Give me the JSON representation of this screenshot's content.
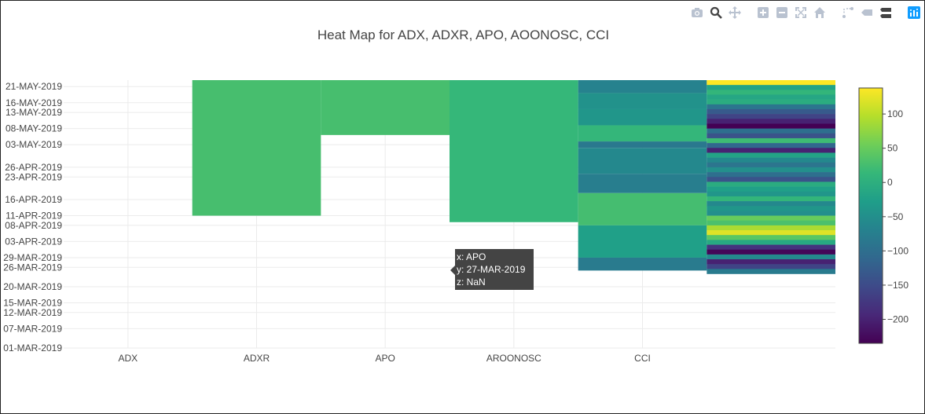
{
  "modebar": {
    "buttons": [
      {
        "name": "camera-icon"
      },
      {
        "name": "zoom-icon",
        "active": true
      },
      {
        "name": "pan-icon"
      },
      {
        "name": "zoom-in-icon"
      },
      {
        "name": "zoom-out-icon"
      },
      {
        "name": "autoscale-icon"
      },
      {
        "name": "home-icon"
      },
      {
        "name": "spike-lines-icon"
      },
      {
        "name": "hover-closest-icon"
      },
      {
        "name": "hover-compare-icon"
      },
      {
        "name": "plotly-logo-icon"
      }
    ],
    "active_color": "#444444",
    "inactive_color": "#b9c2d0",
    "logo_color": "#119dff"
  },
  "tooltip": {
    "x_line": "x: APO",
    "y_line": "y: 27-MAR-2019",
    "z_line": "z: NaN"
  },
  "chart_data": {
    "type": "heatmap",
    "title": "Heat Map for ADX, ADXR, APO, AOONOSC, CCI",
    "colorscale": "viridis",
    "zlim": [
      -235,
      138
    ],
    "colorbar_ticks": [
      100,
      50,
      0,
      -50,
      -100,
      -150,
      -200
    ],
    "x_categories": [
      "ADX",
      "ADXR",
      "APO",
      "AROONOSC",
      "CCI"
    ],
    "y_ticks": [
      "01-MAR-2019",
      "07-MAR-2019",
      "12-MAR-2019",
      "15-MAR-2019",
      "20-MAR-2019",
      "26-MAR-2019",
      "29-MAR-2019",
      "03-APR-2019",
      "08-APR-2019",
      "11-APR-2019",
      "16-APR-2019",
      "23-APR-2019",
      "26-APR-2019",
      "03-MAY-2019",
      "08-MAY-2019",
      "13-MAY-2019",
      "16-MAY-2019",
      "21-MAY-2019"
    ],
    "grid": true,
    "legend": "none",
    "blocks": [
      {
        "y_from": "11-APR-2019",
        "y_to": "23-MAY-2019",
        "x_from": 0.5,
        "x_to": 1.5,
        "z": 27
      },
      {
        "y_from": "06-MAY-2019",
        "y_to": "23-MAY-2019",
        "x_from": 1.5,
        "x_to": 2.5,
        "z": 27
      },
      {
        "y_from": "09-APR-2019",
        "y_to": "23-MAY-2019",
        "x_from": 2.5,
        "x_to": 3.5,
        "z": 14
      },
      {
        "y_from": "19-MAY-2019",
        "y_to": "23-MAY-2019",
        "x_from": 3.5,
        "x_to": 4.5,
        "z": -70
      },
      {
        "y_from": "14-MAY-2019",
        "y_to": "19-MAY-2019",
        "x_from": 3.5,
        "x_to": 4.5,
        "z": -45
      },
      {
        "y_from": "09-MAY-2019",
        "y_to": "14-MAY-2019",
        "x_from": 3.5,
        "x_to": 4.5,
        "z": -40
      },
      {
        "y_from": "04-MAY-2019",
        "y_to": "09-MAY-2019",
        "x_from": 3.5,
        "x_to": 4.5,
        "z": 12
      },
      {
        "y_from": "02-MAY-2019",
        "y_to": "04-MAY-2019",
        "x_from": 3.5,
        "x_to": 4.5,
        "z": -85
      },
      {
        "y_from": "24-APR-2019",
        "y_to": "02-MAY-2019",
        "x_from": 3.5,
        "x_to": 4.5,
        "z": -60
      },
      {
        "y_from": "18-APR-2019",
        "y_to": "24-APR-2019",
        "x_from": 3.5,
        "x_to": 4.5,
        "z": -75
      },
      {
        "y_from": "08-APR-2019",
        "y_to": "18-APR-2019",
        "x_from": 3.5,
        "x_to": 4.5,
        "z": 25
      },
      {
        "y_from": "29-MAR-2019",
        "y_to": "08-APR-2019",
        "x_from": 3.5,
        "x_to": 4.5,
        "z": -25
      },
      {
        "y_from": "25-MAR-2019",
        "y_to": "29-MAR-2019",
        "x_from": 3.5,
        "x_to": 4.5,
        "z": -80
      }
    ],
    "stripes": {
      "x_from": 4.5,
      "x_to": 5.5,
      "y_from": "23-MAY-2019",
      "y_to": "24-MAR-2019",
      "z": [
        138,
        -20,
        10,
        -15,
        -5,
        -90,
        -130,
        -160,
        -200,
        -235,
        -100,
        -140,
        20,
        -110,
        -200,
        -20,
        -60,
        -90,
        -50,
        -100,
        -140,
        -5,
        -25,
        -40,
        10,
        -60,
        -40,
        -50,
        50,
        30,
        90,
        120,
        40,
        -10,
        -180,
        -230,
        -60,
        -200,
        -160,
        -80
      ]
    }
  }
}
